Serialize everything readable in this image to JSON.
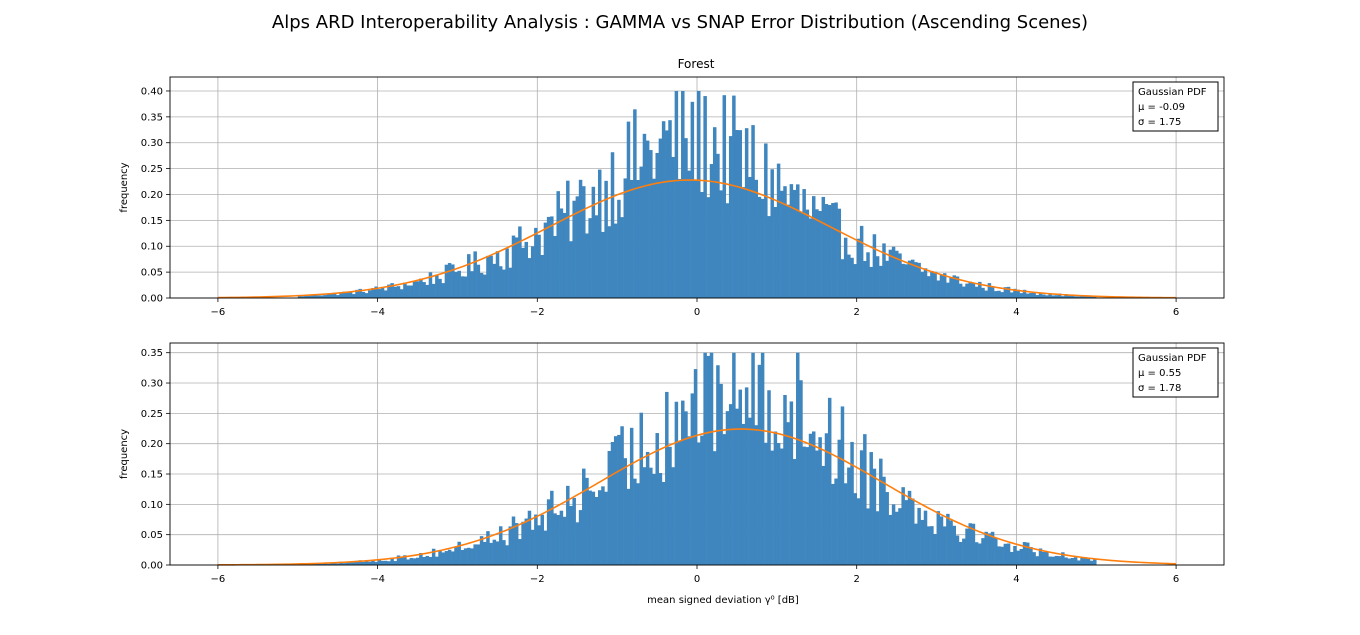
{
  "figure": {
    "title": "Alps ARD Interoperability Analysis : GAMMA vs SNAP Error Distribution (Ascending Scenes)"
  },
  "colors": {
    "bar": "#3f86bf",
    "pdf_line": "#ff7f0e",
    "grid": "#b0b0b0"
  },
  "chart_data": [
    {
      "type": "bar",
      "title": "Forest",
      "xlabel": "",
      "ylabel": "frequency",
      "xlim": [
        -6.6,
        6.6
      ],
      "ylim": [
        0,
        0.427
      ],
      "xticks": [
        "−6",
        "−4",
        "−2",
        "0",
        "2",
        "4",
        "6"
      ],
      "yticks": [
        "0.00",
        "0.05",
        "0.10",
        "0.15",
        "0.20",
        "0.25",
        "0.30",
        "0.35",
        "0.40"
      ],
      "grid": true,
      "legend_position": "top-right",
      "legend": {
        "line1": "Gaussian PDF",
        "line2": "μ = -0.09",
        "line3": "σ = 1.75"
      },
      "histogram": {
        "range": [
          -5.0,
          4.96
        ],
        "bin_width": 0.04,
        "mean": -0.09,
        "std": 1.75,
        "peak_value": 0.4
      },
      "pdf": {
        "mean": -0.09,
        "std": 1.75,
        "x_range": [
          -6,
          6
        ]
      }
    },
    {
      "type": "bar",
      "title": "",
      "xlabel": "mean signed deviation γ⁰ [dB]",
      "ylabel": "frequency",
      "xlim": [
        -6.6,
        6.6
      ],
      "ylim": [
        0,
        0.366
      ],
      "xticks": [
        "−6",
        "−4",
        "−2",
        "0",
        "2",
        "4",
        "6"
      ],
      "yticks": [
        "0.00",
        "0.05",
        "0.10",
        "0.15",
        "0.20",
        "0.25",
        "0.30",
        "0.35"
      ],
      "grid": true,
      "legend_position": "top-right",
      "legend": {
        "line1": "Gaussian PDF",
        "line2": "μ = 0.55",
        "line3": "σ = 1.78"
      },
      "histogram": {
        "range": [
          -5.0,
          4.96
        ],
        "bin_width": 0.04,
        "mean": 0.55,
        "std": 1.78,
        "peak_value": 0.35
      },
      "pdf": {
        "mean": 0.55,
        "std": 1.78,
        "x_range": [
          -6,
          6
        ]
      }
    }
  ]
}
